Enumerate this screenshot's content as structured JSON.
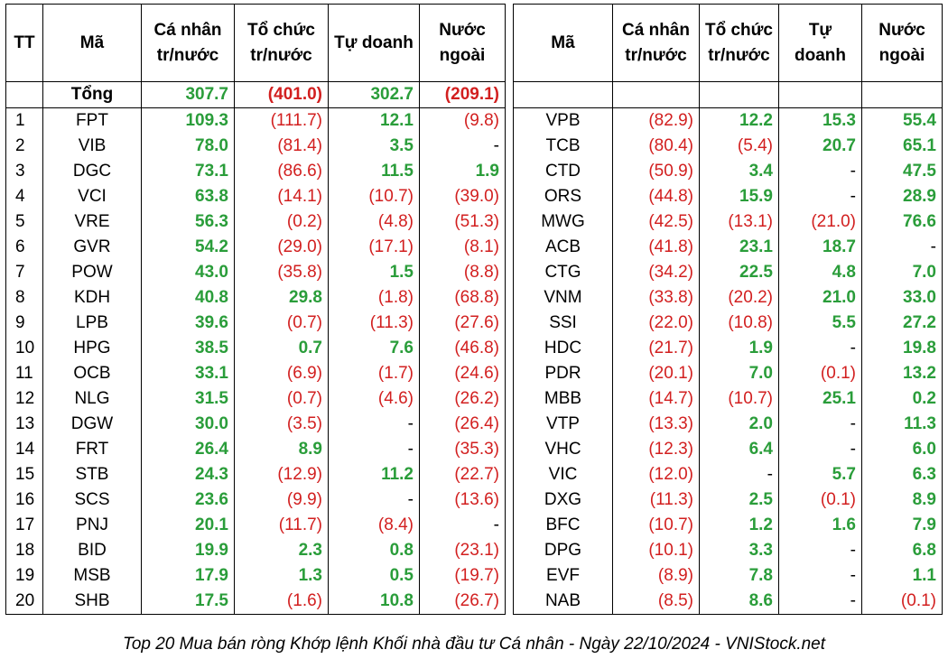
{
  "left": {
    "headers": {
      "tt": "TT",
      "code": "Mã",
      "ind_1": "Cá nhân",
      "ind_2": "tr/nước",
      "org_1": "Tổ chức",
      "org_2": "tr/nước",
      "prop": "Tự doanh",
      "for_1": "Nước",
      "for_2": "ngoài"
    },
    "total": {
      "label": "Tổng",
      "ind": "307.7",
      "org": "(401.0)",
      "prop": "302.7",
      "for": "(209.1)"
    },
    "rows": [
      {
        "tt": "1",
        "code": "FPT",
        "ind": "109.3",
        "org": "(111.7)",
        "prop": "12.1",
        "for": "(9.8)"
      },
      {
        "tt": "2",
        "code": "VIB",
        "ind": "78.0",
        "org": "(81.4)",
        "prop": "3.5",
        "for": "-"
      },
      {
        "tt": "3",
        "code": "DGC",
        "ind": "73.1",
        "org": "(86.6)",
        "prop": "11.5",
        "for": "1.9"
      },
      {
        "tt": "4",
        "code": "VCI",
        "ind": "63.8",
        "org": "(14.1)",
        "prop": "(10.7)",
        "for": "(39.0)"
      },
      {
        "tt": "5",
        "code": "VRE",
        "ind": "56.3",
        "org": "(0.2)",
        "prop": "(4.8)",
        "for": "(51.3)"
      },
      {
        "tt": "6",
        "code": "GVR",
        "ind": "54.2",
        "org": "(29.0)",
        "prop": "(17.1)",
        "for": "(8.1)"
      },
      {
        "tt": "7",
        "code": "POW",
        "ind": "43.0",
        "org": "(35.8)",
        "prop": "1.5",
        "for": "(8.8)"
      },
      {
        "tt": "8",
        "code": "KDH",
        "ind": "40.8",
        "org": "29.8",
        "prop": "(1.8)",
        "for": "(68.8)"
      },
      {
        "tt": "9",
        "code": "LPB",
        "ind": "39.6",
        "org": "(0.7)",
        "prop": "(11.3)",
        "for": "(27.6)"
      },
      {
        "tt": "10",
        "code": "HPG",
        "ind": "38.5",
        "org": "0.7",
        "prop": "7.6",
        "for": "(46.8)"
      },
      {
        "tt": "11",
        "code": "OCB",
        "ind": "33.1",
        "org": "(6.9)",
        "prop": "(1.7)",
        "for": "(24.6)"
      },
      {
        "tt": "12",
        "code": "NLG",
        "ind": "31.5",
        "org": "(0.7)",
        "prop": "(4.6)",
        "for": "(26.2)"
      },
      {
        "tt": "13",
        "code": "DGW",
        "ind": "30.0",
        "org": "(3.5)",
        "prop": "-",
        "for": "(26.4)"
      },
      {
        "tt": "14",
        "code": "FRT",
        "ind": "26.4",
        "org": "8.9",
        "prop": "-",
        "for": "(35.3)"
      },
      {
        "tt": "15",
        "code": "STB",
        "ind": "24.3",
        "org": "(12.9)",
        "prop": "11.2",
        "for": "(22.7)"
      },
      {
        "tt": "16",
        "code": "SCS",
        "ind": "23.6",
        "org": "(9.9)",
        "prop": "-",
        "for": "(13.6)"
      },
      {
        "tt": "17",
        "code": "PNJ",
        "ind": "20.1",
        "org": "(11.7)",
        "prop": "(8.4)",
        "for": "-"
      },
      {
        "tt": "18",
        "code": "BID",
        "ind": "19.9",
        "org": "2.3",
        "prop": "0.8",
        "for": "(23.1)"
      },
      {
        "tt": "19",
        "code": "MSB",
        "ind": "17.9",
        "org": "1.3",
        "prop": "0.5",
        "for": "(19.7)"
      },
      {
        "tt": "20",
        "code": "SHB",
        "ind": "17.5",
        "org": "(1.6)",
        "prop": "10.8",
        "for": "(26.7)"
      }
    ]
  },
  "right": {
    "headers": {
      "code": "Mã",
      "ind_1": "Cá nhân",
      "ind_2": "tr/nước",
      "org_1": "Tổ chức",
      "org_2": "tr/nước",
      "prop_1": "Tự",
      "prop_2": "doanh",
      "for_1": "Nước",
      "for_2": "ngoài"
    },
    "rows": [
      {
        "code": "VPB",
        "ind": "(82.9)",
        "org": "12.2",
        "prop": "15.3",
        "for": "55.4"
      },
      {
        "code": "TCB",
        "ind": "(80.4)",
        "org": "(5.4)",
        "prop": "20.7",
        "for": "65.1"
      },
      {
        "code": "CTD",
        "ind": "(50.9)",
        "org": "3.4",
        "prop": "-",
        "for": "47.5"
      },
      {
        "code": "ORS",
        "ind": "(44.8)",
        "org": "15.9",
        "prop": "-",
        "for": "28.9"
      },
      {
        "code": "MWG",
        "ind": "(42.5)",
        "org": "(13.1)",
        "prop": "(21.0)",
        "for": "76.6"
      },
      {
        "code": "ACB",
        "ind": "(41.8)",
        "org": "23.1",
        "prop": "18.7",
        "for": "-"
      },
      {
        "code": "CTG",
        "ind": "(34.2)",
        "org": "22.5",
        "prop": "4.8",
        "for": "7.0"
      },
      {
        "code": "VNM",
        "ind": "(33.8)",
        "org": "(20.2)",
        "prop": "21.0",
        "for": "33.0"
      },
      {
        "code": "SSI",
        "ind": "(22.0)",
        "org": "(10.8)",
        "prop": "5.5",
        "for": "27.2"
      },
      {
        "code": "HDC",
        "ind": "(21.7)",
        "org": "1.9",
        "prop": "-",
        "for": "19.8"
      },
      {
        "code": "PDR",
        "ind": "(20.1)",
        "org": "7.0",
        "prop": "(0.1)",
        "for": "13.2"
      },
      {
        "code": "MBB",
        "ind": "(14.7)",
        "org": "(10.7)",
        "prop": "25.1",
        "for": "0.2"
      },
      {
        "code": "VTP",
        "ind": "(13.3)",
        "org": "2.0",
        "prop": "-",
        "for": "11.3"
      },
      {
        "code": "VHC",
        "ind": "(12.3)",
        "org": "6.4",
        "prop": "-",
        "for": "6.0"
      },
      {
        "code": "VIC",
        "ind": "(12.0)",
        "org": "-",
        "prop": "5.7",
        "for": "6.3"
      },
      {
        "code": "DXG",
        "ind": "(11.3)",
        "org": "2.5",
        "prop": "(0.1)",
        "for": "8.9"
      },
      {
        "code": "BFC",
        "ind": "(10.7)",
        "org": "1.2",
        "prop": "1.6",
        "for": "7.9"
      },
      {
        "code": "DPG",
        "ind": "(10.1)",
        "org": "3.3",
        "prop": "-",
        "for": "6.8"
      },
      {
        "code": "EVF",
        "ind": "(8.9)",
        "org": "7.8",
        "prop": "-",
        "for": "1.1"
      },
      {
        "code": "NAB",
        "ind": "(8.5)",
        "org": "8.6",
        "prop": "-",
        "for": "(0.1)"
      }
    ]
  },
  "caption": "Top 20 Mua bán ròng Khớp lệnh Khối nhà đầu tư Cá nhân - Ngày 22/10/2024 - VNIStock.net",
  "colors": {
    "positive": "#2a9d3a",
    "negative": "#d21f1f"
  }
}
